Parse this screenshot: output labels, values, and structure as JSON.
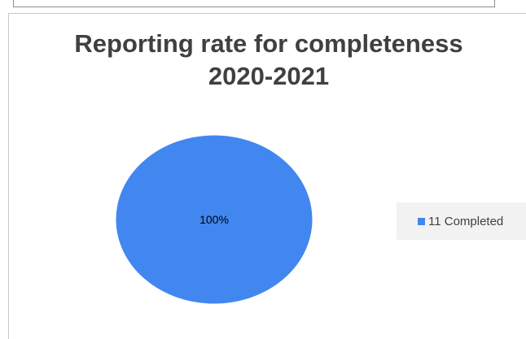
{
  "chart_data": {
    "type": "pie",
    "title": "Reporting rate for completeness",
    "subtitle": "2020-2021",
    "slices": [
      {
        "label": "11 Completed",
        "value": 100,
        "data_label": "100%",
        "color": "#4287f0"
      }
    ],
    "legend_position": "right"
  }
}
